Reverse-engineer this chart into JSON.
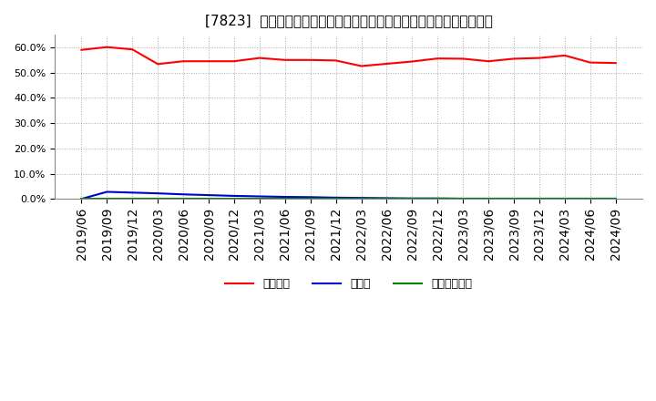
{
  "title": "[7823]  自己資本、のれん、繰延税金資産の総資産に対する比率の推移",
  "x_labels": [
    "2019/06",
    "2019/09",
    "2019/12",
    "2020/03",
    "2020/06",
    "2020/09",
    "2020/12",
    "2021/03",
    "2021/06",
    "2021/09",
    "2021/12",
    "2022/03",
    "2022/06",
    "2022/09",
    "2022/12",
    "2023/03",
    "2023/06",
    "2023/09",
    "2023/12",
    "2024/03",
    "2024/06",
    "2024/09"
  ],
  "equity_ratio": [
    0.59,
    0.601,
    0.592,
    0.534,
    0.545,
    0.545,
    0.545,
    0.558,
    0.55,
    0.55,
    0.548,
    0.526,
    0.535,
    0.544,
    0.556,
    0.555,
    0.545,
    0.555,
    0.558,
    0.568,
    0.54,
    0.538
  ],
  "goodwill_ratio": [
    0.0,
    0.028,
    0.025,
    0.022,
    0.018,
    0.015,
    0.012,
    0.01,
    0.008,
    0.007,
    0.005,
    0.004,
    0.003,
    0.002,
    0.002,
    0.001,
    0.001,
    0.001,
    0.001,
    0.001,
    0.001,
    0.001
  ],
  "deferred_tax_ratio": [
    0.0,
    0.0,
    0.0,
    0.0,
    0.0,
    0.0,
    0.0,
    0.0,
    0.0,
    0.0,
    0.0,
    0.0,
    0.0,
    0.0,
    0.0,
    0.0,
    0.0,
    0.0,
    0.0,
    0.0,
    0.0,
    0.0
  ],
  "equity_color": "#ff0000",
  "goodwill_color": "#0000cc",
  "deferred_tax_color": "#008000",
  "legend_labels": [
    "自己資本",
    "のれん",
    "繰延税金資産"
  ],
  "ylim": [
    0.0,
    0.65
  ],
  "yticks": [
    0.0,
    0.1,
    0.2,
    0.3,
    0.4,
    0.5,
    0.6
  ],
  "background_color": "#ffffff",
  "plot_bg_color": "#ffffff",
  "grid_color": "#aaaaaa",
  "title_fontsize": 11,
  "tick_fontsize": 8,
  "legend_fontsize": 9
}
